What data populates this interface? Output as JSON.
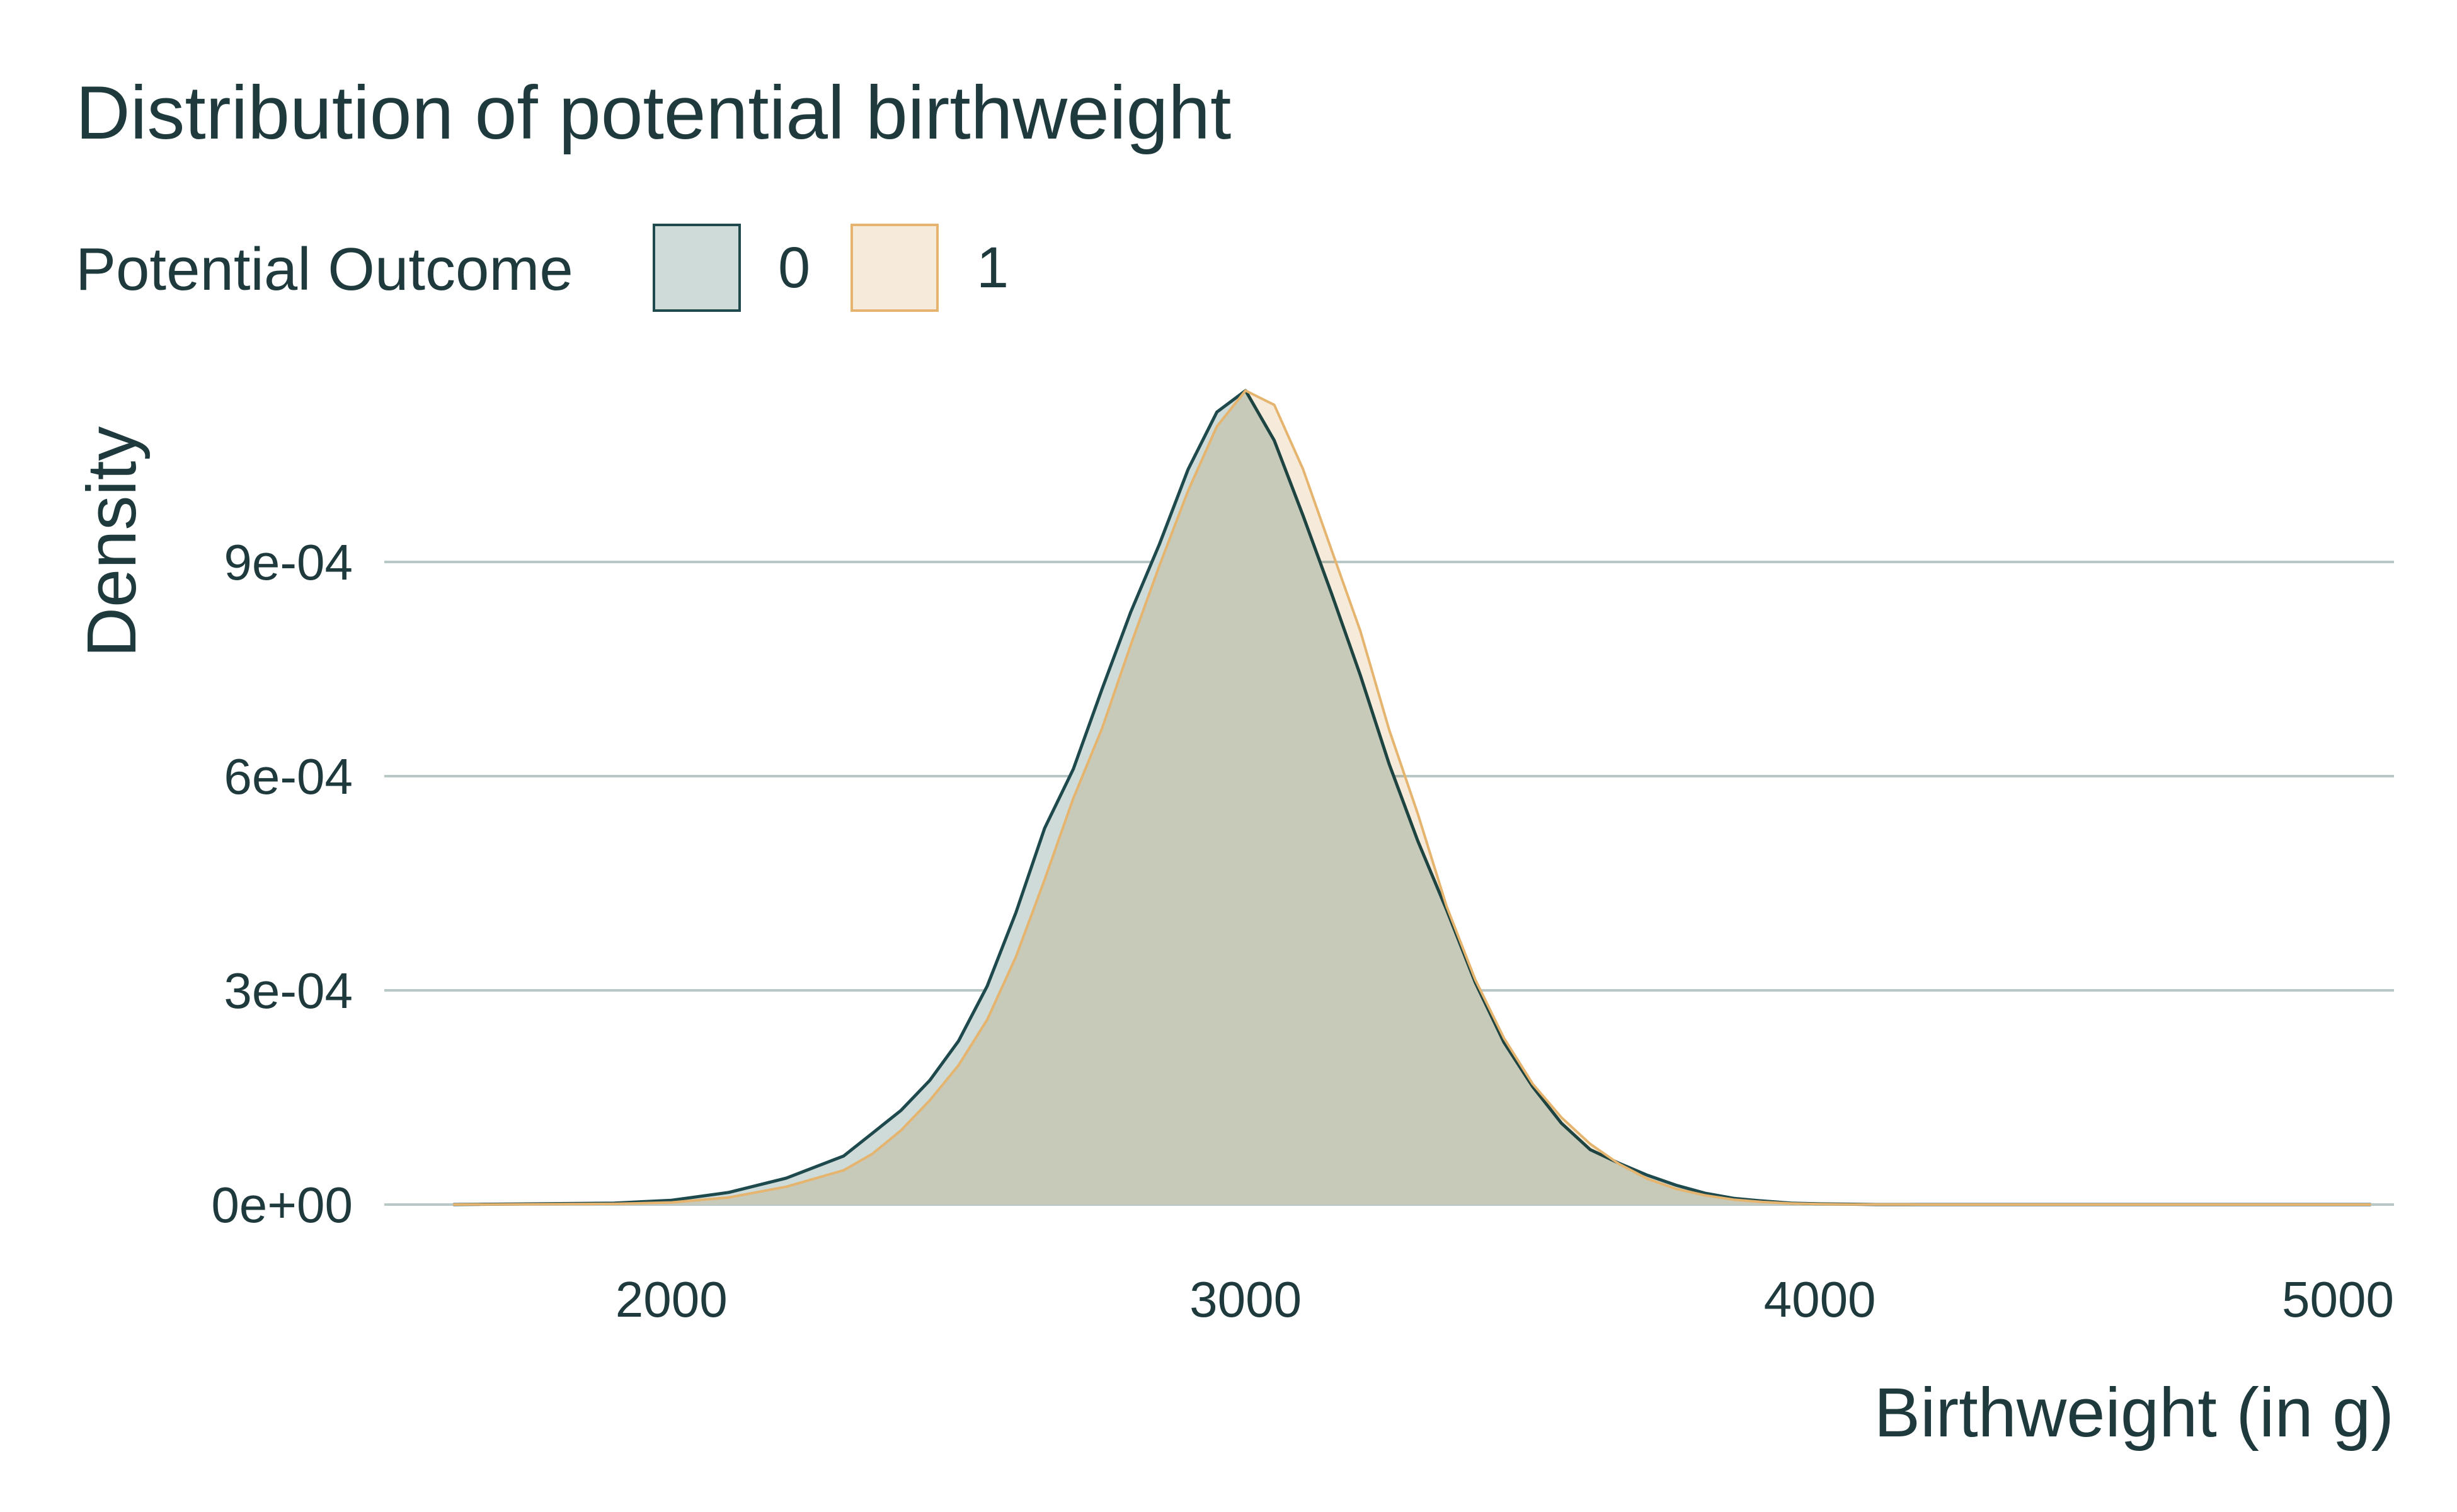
{
  "chart_data": {
    "type": "area",
    "title": "Distribution of potential birthweight",
    "xlabel": "Birthweight (in g)",
    "ylabel": "Density",
    "xlim": [
      1500,
      5000
    ],
    "ylim": [
      0,
      0.00114
    ],
    "x_ticks": [
      2000,
      3000,
      4000,
      5000
    ],
    "x_tick_labels": [
      "2000",
      "3000",
      "4000",
      "5000"
    ],
    "y_ticks": [
      0,
      0.0003,
      0.0006,
      0.0009
    ],
    "y_tick_labels": [
      "0e+00",
      "3e-04",
      "6e-04",
      "9e-04"
    ],
    "grid": "horizontal",
    "legend": {
      "title": "Potential Outcome",
      "placement": "top-left",
      "entries": [
        "0",
        "1"
      ]
    },
    "series": [
      {
        "name": "0",
        "fill": "#cfdbd9",
        "stroke": "#1f4a4d",
        "x": [
          1620,
          1900,
          2000,
          2100,
          2200,
          2300,
          2350,
          2400,
          2450,
          2500,
          2550,
          2600,
          2650,
          2700,
          2750,
          2800,
          2850,
          2900,
          2950,
          3000,
          3050,
          3100,
          3150,
          3200,
          3250,
          3300,
          3350,
          3400,
          3450,
          3500,
          3550,
          3600,
          3650,
          3700,
          3750,
          3800,
          3850,
          3900,
          3950,
          4000,
          4050,
          4100,
          4150,
          4200,
          4300,
          4400,
          4500,
          4600,
          4700,
          4800,
          4900,
          4960
        ],
        "y": [
          0,
          2e-06,
          6e-06,
          1.7e-05,
          3.7e-05,
          6.8e-05,
          9.99e-05,
          0.000132,
          0.000174,
          0.000229,
          0.000306,
          0.000409,
          0.000527,
          0.00061,
          0.000722,
          0.00083,
          0.000925,
          0.00103,
          0.00111,
          0.00114,
          0.00107,
          0.000965,
          0.000855,
          0.000741,
          0.000617,
          0.000509,
          0.000413,
          0.000311,
          0.000227,
          0.000165,
          0.000114,
          7.7e-05,
          5.8e-05,
          4.1e-05,
          2.7e-05,
          1.6e-05,
          8.7e-06,
          5e-06,
          2e-06,
          1e-06,
          5e-07,
          0,
          0,
          0,
          0,
          0,
          0,
          0,
          0,
          0,
          0,
          0
        ]
      },
      {
        "name": "1",
        "fill": "#f6eada",
        "stroke": "#e5b46e",
        "x": [
          1620,
          1900,
          2000,
          2100,
          2200,
          2300,
          2350,
          2400,
          2450,
          2500,
          2550,
          2600,
          2650,
          2700,
          2750,
          2800,
          2850,
          2900,
          2950,
          3000,
          3050,
          3100,
          3150,
          3200,
          3250,
          3300,
          3350,
          3400,
          3450,
          3500,
          3550,
          3600,
          3650,
          3700,
          3750,
          3800,
          3850,
          3900,
          3950,
          4000,
          4050,
          4100,
          4150,
          4200,
          4300,
          4400,
          4500,
          4600,
          4700,
          4800,
          4900,
          4960
        ],
        "y": [
          0,
          1e-06,
          3e-06,
          1e-05,
          2.5e-05,
          4.8e-05,
          7.1e-05,
          0.000104,
          0.000146,
          0.000195,
          0.000259,
          0.000347,
          0.000455,
          0.000569,
          0.000667,
          0.000784,
          0.000895,
          0.001,
          0.00109,
          0.00114,
          0.00112,
          0.00103,
          0.000916,
          0.000803,
          0.000665,
          0.000547,
          0.000418,
          0.000315,
          0.000233,
          0.000169,
          0.000122,
          8.5e-05,
          5.7e-05,
          3.6e-05,
          2.2e-05,
          1.3e-05,
          6.9e-06,
          3.6e-06,
          1.6e-06,
          6e-07,
          2e-07,
          1e-07,
          1e-07,
          0,
          0,
          0,
          0,
          0,
          0,
          0,
          0,
          0
        ]
      }
    ]
  }
}
